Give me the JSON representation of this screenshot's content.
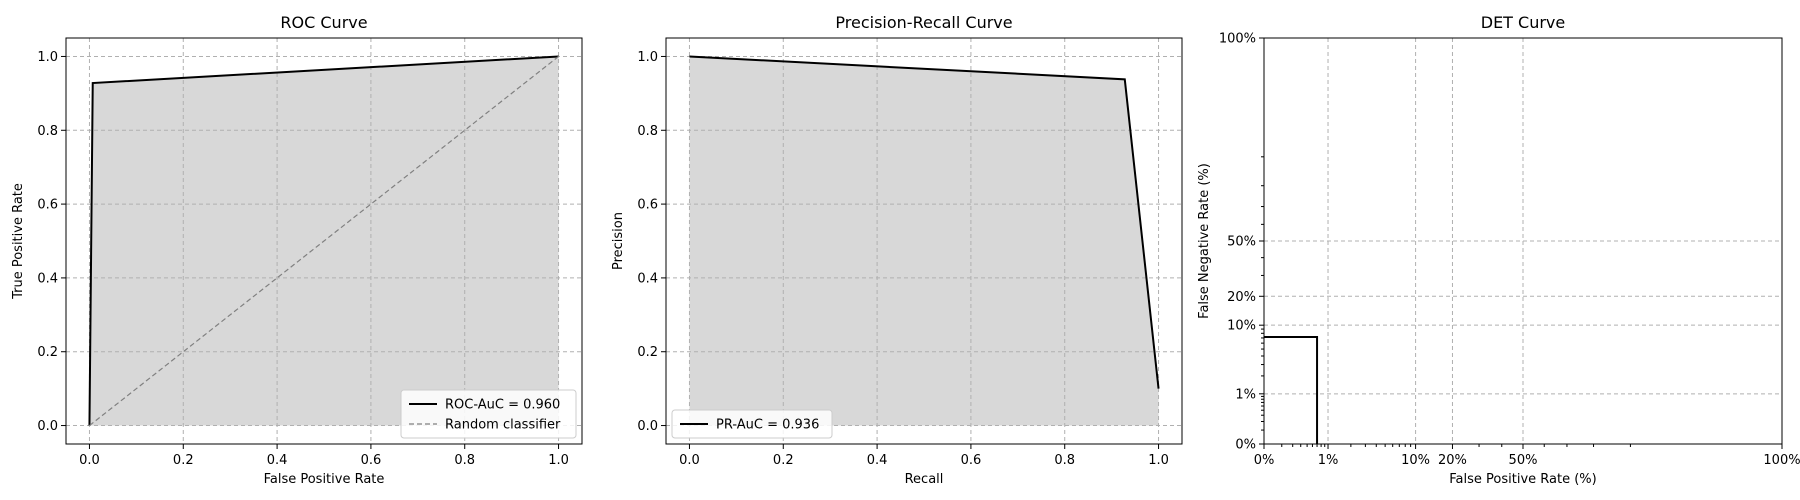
{
  "chart_data": [
    {
      "type": "line",
      "title": "ROC Curve",
      "xlabel": "False Positive Rate",
      "ylabel": "True Positive Rate",
      "xlim": [
        -0.05,
        1.05
      ],
      "ylim": [
        -0.05,
        1.05
      ],
      "xticks": [
        0.0,
        0.2,
        0.4,
        0.6,
        0.8,
        1.0
      ],
      "yticks": [
        0.0,
        0.2,
        0.4,
        0.6,
        0.8,
        1.0
      ],
      "xtick_labels": [
        "0.0",
        "0.2",
        "0.4",
        "0.6",
        "0.8",
        "1.0"
      ],
      "ytick_labels": [
        "0.0",
        "0.2",
        "0.4",
        "0.6",
        "0.8",
        "1.0"
      ],
      "grid": true,
      "legend_position": "bottom-right",
      "series": [
        {
          "name": "ROC-AuC = 0.960",
          "style": "solid",
          "color": "#000000",
          "fill_under": true,
          "x": [
            0.0,
            0.007,
            1.0
          ],
          "y": [
            0.0,
            0.928,
            1.0
          ]
        },
        {
          "name": "Random classifier",
          "style": "dashed",
          "color": "#808080",
          "fill_under": false,
          "x": [
            0.0,
            1.0
          ],
          "y": [
            0.0,
            1.0
          ]
        }
      ]
    },
    {
      "type": "line",
      "title": "Precision-Recall Curve",
      "xlabel": "Recall",
      "ylabel": "Precision",
      "xlim": [
        -0.05,
        1.05
      ],
      "ylim": [
        -0.05,
        1.05
      ],
      "xticks": [
        0.0,
        0.2,
        0.4,
        0.6,
        0.8,
        1.0
      ],
      "yticks": [
        0.0,
        0.2,
        0.4,
        0.6,
        0.8,
        1.0
      ],
      "xtick_labels": [
        "0.0",
        "0.2",
        "0.4",
        "0.6",
        "0.8",
        "1.0"
      ],
      "ytick_labels": [
        "0.0",
        "0.2",
        "0.4",
        "0.6",
        "0.8",
        "1.0"
      ],
      "grid": true,
      "legend_position": "bottom-left",
      "series": [
        {
          "name": "PR-AuC = 0.936",
          "style": "solid",
          "color": "#000000",
          "fill_under": true,
          "x": [
            0.0,
            0.928,
            1.0
          ],
          "y": [
            1.0,
            0.938,
            0.1
          ]
        }
      ]
    },
    {
      "type": "line",
      "title": "DET Curve",
      "xlabel": "False Positive Rate (%)",
      "ylabel": "False Negative Rate (%)",
      "scale": "normal-deviate",
      "xticks": [
        0.0,
        0.01,
        0.1,
        0.2,
        0.5,
        1.0
      ],
      "yticks": [
        0.0,
        0.01,
        0.1,
        0.2,
        0.5,
        1.0
      ],
      "xtick_labels": [
        "0%",
        "1%",
        "10%",
        "20%",
        "50%",
        "100%"
      ],
      "ytick_labels": [
        "0%",
        "1%",
        "10%",
        "20%",
        "50%",
        "100%"
      ],
      "grid": true,
      "series": [
        {
          "name": "",
          "style": "solid",
          "color": "#000000",
          "fill_under": false,
          "x": [
            0.0,
            0.007,
            0.007
          ],
          "y": [
            0.072,
            0.072,
            0.0
          ]
        }
      ]
    }
  ],
  "colors": {
    "fill": "#d8d8d8",
    "grid": "#b0b0b0",
    "line": "#000000",
    "diagonal": "#808080"
  }
}
